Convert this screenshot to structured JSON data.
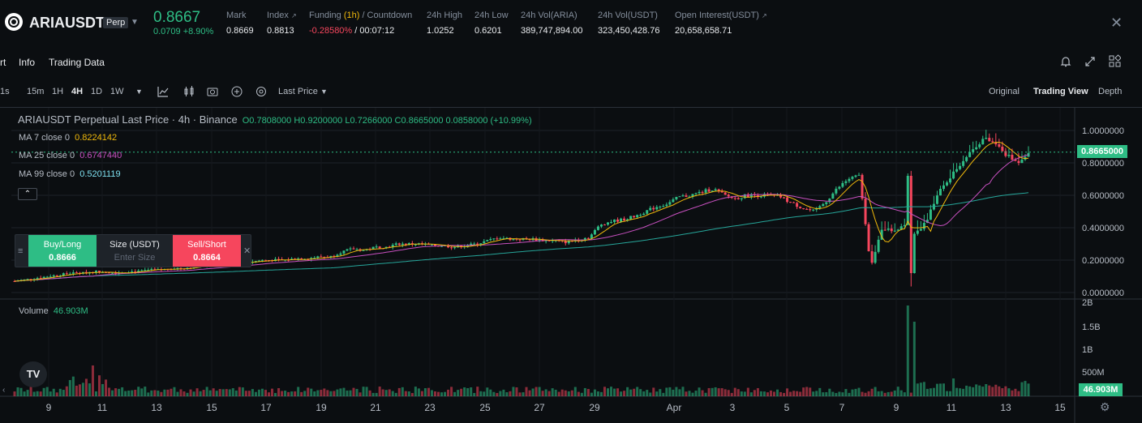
{
  "header": {
    "symbol": "ARIAUSDT",
    "badge": "Perp",
    "last_price": "0.8667",
    "change": "0.0709 +8.90%",
    "stats": [
      {
        "label": "Mark",
        "value": "0.8669"
      },
      {
        "label": "Index",
        "value": "0.8813"
      },
      {
        "label_main": "Funding",
        "label_accent": "(1h)",
        "label_tail": " / Countdown",
        "value_neg": "-0.28580%",
        "value_tail": " / 00:07:12"
      },
      {
        "label": "24h High",
        "value": "1.0252"
      },
      {
        "label": "24h Low",
        "value": "0.6201"
      },
      {
        "label": "24h Vol(ARIA)",
        "value": "389,747,894.00"
      },
      {
        "label": "24h Vol(USDT)",
        "value": "323,450,428.76"
      },
      {
        "label": "Open Interest(USDT)",
        "value": "20,658,658.71"
      }
    ]
  },
  "tabs": [
    "rt",
    "Info",
    "Trading Data"
  ],
  "toolbar": {
    "intervals": [
      "1s",
      "15m",
      "1H",
      "4H",
      "1D",
      "1W"
    ],
    "active_interval": "4H",
    "price_type": "Last Price",
    "views": [
      "Original",
      "Trading View",
      "Depth"
    ],
    "active_view": "Trading View"
  },
  "legend": {
    "title": "ARIAUSDT Perpetual Last Price · 4h · Binance",
    "ohlc": "O0.7808000 H0.9200000 L0.7266000 C0.8665000 0.0858000 (+10.99%)",
    "ma": [
      {
        "label": "MA 7 close 0",
        "value": "0.8224142",
        "color": "#f0b90b"
      },
      {
        "label": "MA 25 close 0",
        "value": "0.6747440",
        "color": "#c850c0"
      },
      {
        "label": "MA 99 close 0",
        "value": "0.5201119",
        "color": "#7ee0f0"
      }
    ],
    "volume_label": "Volume",
    "volume_value": "46.903M"
  },
  "order_widget": {
    "buy_label": "Buy/Long",
    "buy_price": "0.8666",
    "size_label": "Size (USDT)",
    "size_placeholder": "Enter Size",
    "sell_label": "Sell/Short",
    "sell_price": "0.8664"
  },
  "colors": {
    "up": "#2ebd85",
    "down": "#f6465d",
    "ma7": "#f0b90b",
    "ma25": "#c850c0",
    "ma99": "#26a69a"
  },
  "chart_data": {
    "type": "candlestick",
    "price_axis": [
      "1.0000000",
      "0.8000000",
      "0.6000000",
      "0.4000000",
      "0.2000000",
      "0.0000000"
    ],
    "price_range": [
      0,
      1.0
    ],
    "current_price_tag": "0.8665000",
    "volume_axis": [
      "2B",
      "1.5B",
      "1B",
      "500M"
    ],
    "volume_tag": "46.903M",
    "x_ticks": [
      "9",
      "11",
      "13",
      "15",
      "17",
      "19",
      "21",
      "23",
      "25",
      "27",
      "29",
      "Apr",
      "3",
      "5",
      "7",
      "9",
      "11",
      "13",
      "15"
    ],
    "close_series": [
      0.07,
      0.08,
      0.09,
      0.1,
      0.11,
      0.12,
      0.12,
      0.13,
      0.13,
      0.12,
      0.13,
      0.13,
      0.14,
      0.14,
      0.15,
      0.15,
      0.16,
      0.17,
      0.17,
      0.18,
      0.19,
      0.19,
      0.2,
      0.2,
      0.2,
      0.21,
      0.21,
      0.22,
      0.22,
      0.25,
      0.27,
      0.26,
      0.28,
      0.28,
      0.3,
      0.3,
      0.3,
      0.29,
      0.29,
      0.28,
      0.29,
      0.3,
      0.32,
      0.34,
      0.33,
      0.33,
      0.33,
      0.32,
      0.32,
      0.31,
      0.33,
      0.34,
      0.42,
      0.44,
      0.45,
      0.47,
      0.5,
      0.53,
      0.55,
      0.59,
      0.6,
      0.62,
      0.64,
      0.6,
      0.58,
      0.6,
      0.6,
      0.6,
      0.59,
      0.55,
      0.52,
      0.5,
      0.56,
      0.64,
      0.7,
      0.72,
      0.15,
      0.4,
      0.38,
      0.42,
      0.36,
      0.45,
      0.62,
      0.7,
      0.8,
      0.88,
      0.95,
      0.92,
      0.85,
      0.8,
      0.87
    ]
  }
}
